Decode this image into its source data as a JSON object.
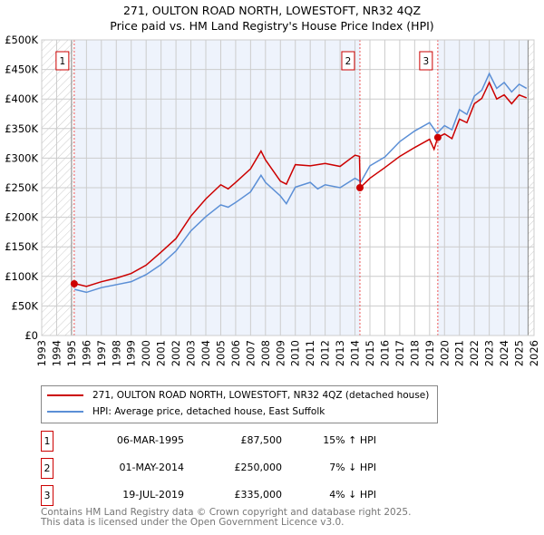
{
  "chart_data": {
    "type": "line",
    "title": "271, OULTON ROAD NORTH, LOWESTOFT, NR32 4QZ",
    "subtitle": "Price paid vs. HM Land Registry's House Price Index (HPI)",
    "xlim": [
      1993,
      2026
    ],
    "ylim": [
      0,
      500000
    ],
    "x_ticks": [
      "1993",
      "1994",
      "1995",
      "1996",
      "1997",
      "1998",
      "1999",
      "2000",
      "2001",
      "2002",
      "2003",
      "2004",
      "2005",
      "2006",
      "2007",
      "2008",
      "2009",
      "2010",
      "2011",
      "2012",
      "2013",
      "2014",
      "2015",
      "2016",
      "2017",
      "2018",
      "2019",
      "2020",
      "2021",
      "2022",
      "2023",
      "2024",
      "2025",
      "2026"
    ],
    "y_ticks": [
      {
        "v": 0,
        "l": "£0"
      },
      {
        "v": 50000,
        "l": "£50K"
      },
      {
        "v": 100000,
        "l": "£100K"
      },
      {
        "v": 150000,
        "l": "£150K"
      },
      {
        "v": 200000,
        "l": "£200K"
      },
      {
        "v": 250000,
        "l": "£250K"
      },
      {
        "v": 300000,
        "l": "£300K"
      },
      {
        "v": 350000,
        "l": "£350K"
      },
      {
        "v": 400000,
        "l": "£400K"
      },
      {
        "v": 450000,
        "l": "£450K"
      },
      {
        "v": 500000,
        "l": "£500K"
      }
    ],
    "grid": true,
    "series": [
      {
        "name": "271, OULTON ROAD NORTH, LOWESTOFT, NR32 4QZ (detached house)",
        "color": "#cc0000",
        "x": [
          1995.2,
          1996,
          1997,
          1998,
          1999,
          2000,
          2001,
          2002,
          2003,
          2004,
          2005,
          2005.5,
          2006,
          2007,
          2007.7,
          2008,
          2009,
          2009.4,
          2010,
          2011,
          2012,
          2013,
          2014,
          2014.3,
          2014.35,
          2015,
          2016,
          2017,
          2018,
          2019,
          2019.3,
          2019.55,
          2020,
          2020.5,
          2021,
          2021.5,
          2022,
          2022.5,
          2023,
          2023.5,
          2024,
          2024.5,
          2025,
          2025.5
        ],
        "y": [
          88000,
          83000,
          91000,
          97000,
          105000,
          119000,
          141000,
          164000,
          202000,
          231000,
          255000,
          248000,
          259000,
          282000,
          312000,
          297000,
          261000,
          256000,
          289000,
          287000,
          291000,
          286000,
          305000,
          303000,
          250000,
          266000,
          284000,
          303000,
          318000,
          332000,
          315000,
          335000,
          341000,
          333000,
          366000,
          360000,
          392000,
          401000,
          428000,
          400000,
          407000,
          392000,
          407000,
          402000
        ]
      },
      {
        "name": "HPI: Average price, detached house, East Suffolk",
        "color": "#5b8fd6",
        "x": [
          1995.2,
          1996,
          1997,
          1998,
          1999,
          2000,
          2001,
          2002,
          2003,
          2004,
          2005,
          2005.5,
          2006,
          2007,
          2007.7,
          2008,
          2009,
          2009.4,
          2010,
          2011,
          2011.5,
          2012,
          2013,
          2014,
          2014.4,
          2015,
          2016,
          2017,
          2018,
          2019,
          2019.5,
          2020,
          2020.5,
          2021,
          2021.5,
          2022,
          2022.5,
          2023,
          2023.5,
          2024,
          2024.5,
          2025,
          2025.5
        ],
        "y": [
          78000,
          73000,
          81000,
          86000,
          91000,
          103000,
          120000,
          143000,
          177000,
          201000,
          221000,
          217000,
          225000,
          243000,
          271000,
          259000,
          236000,
          223000,
          251000,
          259000,
          248000,
          255000,
          250000,
          266000,
          260000,
          287000,
          302000,
          328000,
          346000,
          360000,
          342000,
          355000,
          348000,
          382000,
          374000,
          405000,
          415000,
          443000,
          418000,
          428000,
          412000,
          425000,
          418000
        ]
      }
    ],
    "sales": [
      {
        "n": "1",
        "x": 1995.18,
        "price": 87500,
        "date": "06-MAR-1995",
        "price_label": "£87,500",
        "hpi": "15% ↑ HPI"
      },
      {
        "n": "2",
        "x": 2014.33,
        "price": 250000,
        "date": "01-MAY-2014",
        "price_label": "£250,000",
        "hpi": "7% ↓ HPI"
      },
      {
        "n": "3",
        "x": 2019.55,
        "price": 335000,
        "date": "19-JUL-2019",
        "price_label": "£335,000",
        "hpi": "4% ↓ HPI"
      }
    ]
  },
  "footer": {
    "line1": "Contains HM Land Registry data © Crown copyright and database right 2025.",
    "line2": "This data is licensed under the Open Government Licence v3.0."
  }
}
